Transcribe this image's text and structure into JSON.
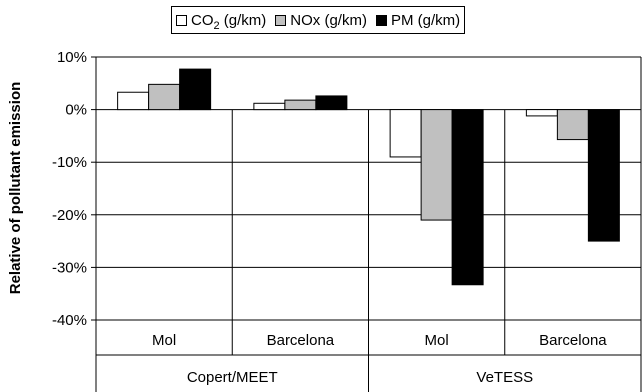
{
  "chart_data": {
    "type": "bar",
    "ylabel": "Relative of pollutant emission",
    "ylim": [
      -40,
      10
    ],
    "yticks": [
      "10%",
      "0%",
      "-10%",
      "-20%",
      "-30%",
      "-40%"
    ],
    "ytick_values": [
      10,
      0,
      -10,
      -20,
      -30,
      -40
    ],
    "grid": true,
    "legend_position": "top-center",
    "categories": [
      "Mol",
      "Barcelona",
      "Mol",
      "Barcelona"
    ],
    "groups": [
      {
        "label": "Copert/MEET",
        "categories": [
          "Mol",
          "Barcelona"
        ]
      },
      {
        "label": "VeTESS",
        "categories": [
          "Mol",
          "Barcelona"
        ]
      }
    ],
    "series": [
      {
        "name": "CO2 (g/km)",
        "color": "#ffffff",
        "values": [
          3.3,
          1.2,
          -9.0,
          -1.2
        ]
      },
      {
        "name": "NOx (g/km)",
        "color": "#c0c0c0",
        "values": [
          4.8,
          1.8,
          -21.0,
          -5.7
        ]
      },
      {
        "name": "PM (g/km)",
        "color": "#000000",
        "values": [
          7.7,
          2.6,
          -33.3,
          -25.0
        ]
      }
    ]
  },
  "legend": {
    "co2_prefix": "CO",
    "co2_subscript": "2",
    "co2_unit": " (g/km)",
    "nox": "NOx (g/km)",
    "pm": "PM (g/km)"
  }
}
